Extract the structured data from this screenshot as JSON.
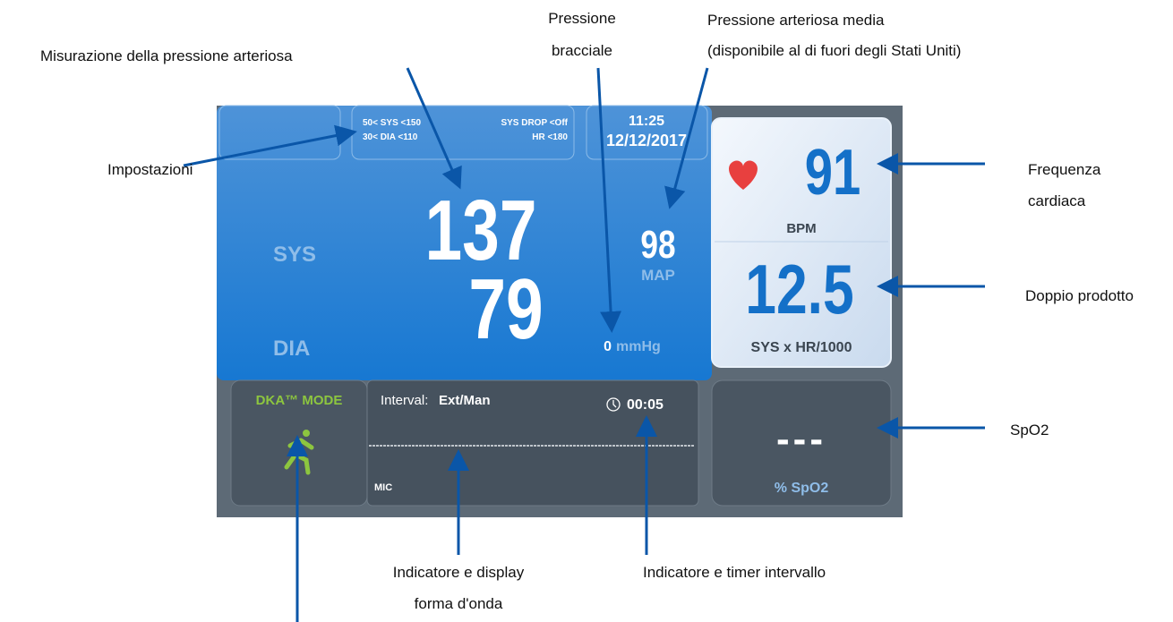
{
  "annotations": {
    "misurazione": "Misurazione della pressione arteriosa",
    "pressione_bracciale": [
      "Pressione",
      "bracciale"
    ],
    "pressione_media": [
      "Pressione arteriosa media",
      "(disponibile al di fuori degli Stati Uniti)"
    ],
    "impostazioni": "Impostazioni",
    "frequenza_cardiaca": [
      "Frequenza",
      "cardiaca"
    ],
    "doppio_prodotto": "Doppio prodotto",
    "spo2": "SpO2",
    "forma_onda": [
      "Indicatore e display",
      "forma d'onda"
    ],
    "timer": "Indicatore e timer intervallo"
  },
  "screen": {
    "settings": {
      "sys_range": "50< SYS <150",
      "dia_range": "30< DIA <110",
      "sys_drop": "SYS DROP <Off",
      "hr_limit": "HR <180"
    },
    "time": "11:25",
    "date": "12/12/2017",
    "sys_label": "SYS",
    "sys_value": "137",
    "dia_label": "DIA",
    "dia_value": "79",
    "map_value": "98",
    "map_label": "MAP",
    "cuff_value": "0",
    "cuff_unit": "mmHg",
    "hr_value": "91",
    "hr_unit": "BPM",
    "dp_value": "12.5",
    "dp_unit": "SYS x HR/1000",
    "mode": "DKA™ MODE",
    "interval_label": "Interval:",
    "interval_value": "Ext/Man",
    "timer": "00:05",
    "mic": "MIC",
    "spo2_value": "---",
    "spo2_unit": "% SpO2"
  }
}
